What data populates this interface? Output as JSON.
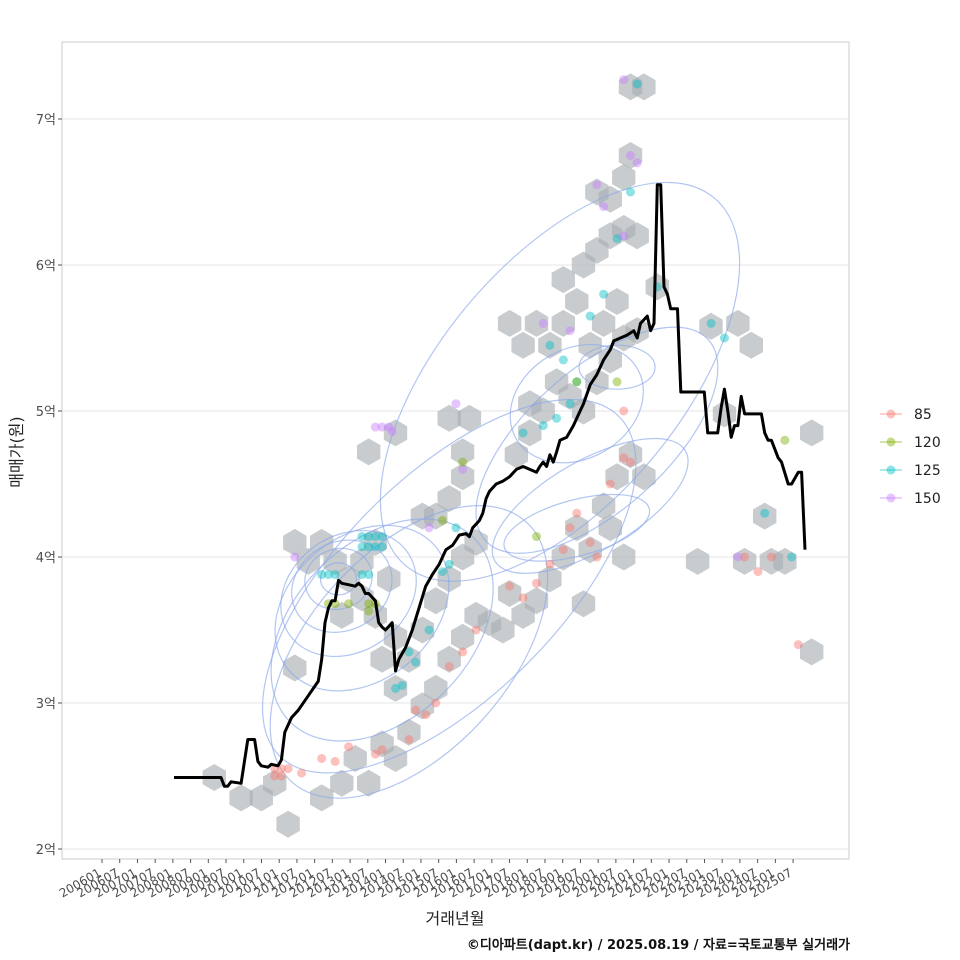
{
  "chart_data": {
    "type": "scatter",
    "xlabel": "거래년월",
    "ylabel": "매매가(원)",
    "ylim": [
      1.95,
      7.52
    ],
    "xlim_months": [
      0,
      246
    ],
    "y_ticks": [
      {
        "value": 2,
        "label": "2억"
      },
      {
        "value": 3,
        "label": "3억"
      },
      {
        "value": 4,
        "label": "4억"
      },
      {
        "value": 5,
        "label": "5억"
      },
      {
        "value": 6,
        "label": "6억"
      },
      {
        "value": 7,
        "label": "7억"
      }
    ],
    "x_ticks": [
      "200601",
      "200607",
      "200701",
      "200707",
      "200801",
      "200807",
      "200901",
      "200907",
      "201001",
      "201007",
      "201101",
      "201107",
      "201201",
      "201207",
      "201301",
      "201307",
      "201401",
      "201407",
      "201501",
      "201507",
      "201601",
      "201607",
      "201701",
      "201707",
      "201801",
      "201807",
      "201901",
      "201907",
      "202001",
      "202007",
      "202101",
      "202107",
      "202201",
      "202207",
      "202301",
      "202307",
      "202401",
      "202407",
      "202501",
      "202507"
    ],
    "legend_title": "",
    "legend": [
      {
        "label": "85",
        "color": "#F8766D"
      },
      {
        "label": "120",
        "color": "#7CAE00"
      },
      {
        "label": "125",
        "color": "#00BFC4"
      },
      {
        "label": "150",
        "color": "#C77CFF"
      }
    ],
    "median_line": [
      [
        0,
        2.49
      ],
      [
        6,
        2.49
      ],
      [
        8,
        2.49
      ],
      [
        10,
        2.49
      ],
      [
        14,
        2.49
      ],
      [
        15,
        2.43
      ],
      [
        16,
        2.43
      ],
      [
        17,
        2.46
      ],
      [
        20,
        2.45
      ],
      [
        22,
        2.75
      ],
      [
        24,
        2.75
      ],
      [
        25,
        2.6
      ],
      [
        26,
        2.57
      ],
      [
        28,
        2.56
      ],
      [
        29,
        2.58
      ],
      [
        31,
        2.57
      ],
      [
        32,
        2.61
      ],
      [
        33,
        2.8
      ],
      [
        35,
        2.9
      ],
      [
        37,
        2.95
      ],
      [
        40,
        3.05
      ],
      [
        43,
        3.15
      ],
      [
        44,
        3.3
      ],
      [
        45,
        3.55
      ],
      [
        46,
        3.65
      ],
      [
        47,
        3.7
      ],
      [
        48,
        3.7
      ],
      [
        49,
        3.84
      ],
      [
        50,
        3.82
      ],
      [
        52,
        3.81
      ],
      [
        54,
        3.8
      ],
      [
        55,
        3.82
      ],
      [
        56,
        3.8
      ],
      [
        57,
        3.75
      ],
      [
        58,
        3.75
      ],
      [
        60,
        3.7
      ],
      [
        61,
        3.55
      ],
      [
        62,
        3.52
      ],
      [
        63,
        3.5
      ],
      [
        65,
        3.55
      ],
      [
        66,
        3.22
      ],
      [
        67,
        3.3
      ],
      [
        69,
        3.38
      ],
      [
        71,
        3.5
      ],
      [
        73,
        3.65
      ],
      [
        75,
        3.8
      ],
      [
        77,
        3.88
      ],
      [
        79,
        3.95
      ],
      [
        81,
        4.05
      ],
      [
        83,
        4.08
      ],
      [
        85,
        4.15
      ],
      [
        87,
        4.16
      ],
      [
        88,
        4.14
      ],
      [
        89,
        4.2
      ],
      [
        91,
        4.25
      ],
      [
        92,
        4.3
      ],
      [
        93,
        4.4
      ],
      [
        94,
        4.45
      ],
      [
        96,
        4.5
      ],
      [
        98,
        4.52
      ],
      [
        100,
        4.55
      ],
      [
        102,
        4.6
      ],
      [
        104,
        4.62
      ],
      [
        106,
        4.6
      ],
      [
        108,
        4.58
      ],
      [
        109,
        4.62
      ],
      [
        110,
        4.65
      ],
      [
        111,
        4.62
      ],
      [
        112,
        4.7
      ],
      [
        113,
        4.65
      ],
      [
        114,
        4.72
      ],
      [
        115,
        4.8
      ],
      [
        117,
        4.82
      ],
      [
        119,
        4.9
      ],
      [
        121,
        5.0
      ],
      [
        122,
        5.05
      ],
      [
        124,
        5.18
      ],
      [
        126,
        5.25
      ],
      [
        128,
        5.35
      ],
      [
        130,
        5.42
      ],
      [
        131,
        5.48
      ],
      [
        133,
        5.5
      ],
      [
        135,
        5.52
      ],
      [
        137,
        5.55
      ],
      [
        138,
        5.5
      ],
      [
        139,
        5.6
      ],
      [
        141,
        5.65
      ],
      [
        142,
        5.55
      ],
      [
        143,
        5.6
      ],
      [
        144,
        6.55
      ],
      [
        145,
        6.55
      ],
      [
        146,
        5.85
      ],
      [
        147,
        5.8
      ],
      [
        148,
        5.7
      ],
      [
        150,
        5.7
      ],
      [
        151,
        5.13
      ],
      [
        153,
        5.13
      ],
      [
        155,
        5.13
      ],
      [
        157,
        5.13
      ],
      [
        158,
        5.13
      ],
      [
        159,
        4.85
      ],
      [
        161,
        4.85
      ],
      [
        162,
        4.85
      ],
      [
        163,
        5.02
      ],
      [
        164,
        5.15
      ],
      [
        165,
        5.0
      ],
      [
        166,
        4.82
      ],
      [
        167,
        4.9
      ],
      [
        168,
        4.9
      ],
      [
        169,
        5.1
      ],
      [
        170,
        4.98
      ],
      [
        172,
        4.98
      ],
      [
        174,
        4.98
      ],
      [
        175,
        4.98
      ],
      [
        176,
        4.85
      ],
      [
        177,
        4.8
      ],
      [
        178,
        4.8
      ],
      [
        180,
        4.68
      ],
      [
        181,
        4.65
      ],
      [
        183,
        4.5
      ],
      [
        184,
        4.5
      ],
      [
        186,
        4.58
      ],
      [
        187,
        4.58
      ],
      [
        188,
        4.05
      ]
    ],
    "points": [
      {
        "series": "150",
        "x": 60,
        "y": 4.89
      },
      {
        "series": "150",
        "x": 62,
        "y": 4.89
      },
      {
        "series": "150",
        "x": 64,
        "y": 4.89
      },
      {
        "series": "150",
        "x": 65,
        "y": 4.86
      },
      {
        "series": "125",
        "x": 44,
        "y": 3.88
      },
      {
        "series": "125",
        "x": 46,
        "y": 3.88
      },
      {
        "series": "125",
        "x": 48,
        "y": 3.88
      },
      {
        "series": "125",
        "x": 56,
        "y": 4.14
      },
      {
        "series": "125",
        "x": 58,
        "y": 4.14
      },
      {
        "series": "125",
        "x": 60,
        "y": 4.14
      },
      {
        "series": "125",
        "x": 62,
        "y": 4.14
      },
      {
        "series": "125",
        "x": 56,
        "y": 4.07
      },
      {
        "series": "125",
        "x": 58,
        "y": 4.07
      },
      {
        "series": "125",
        "x": 60,
        "y": 4.07
      },
      {
        "series": "125",
        "x": 62,
        "y": 4.07
      },
      {
        "series": "125",
        "x": 56,
        "y": 3.88
      },
      {
        "series": "125",
        "x": 58,
        "y": 3.88
      },
      {
        "series": "120",
        "x": 46,
        "y": 3.68
      },
      {
        "series": "120",
        "x": 48,
        "y": 3.68
      },
      {
        "series": "120",
        "x": 52,
        "y": 3.68
      },
      {
        "series": "120",
        "x": 58,
        "y": 3.68
      },
      {
        "series": "120",
        "x": 60,
        "y": 3.68
      },
      {
        "series": "120",
        "x": 58,
        "y": 3.63
      },
      {
        "series": "85",
        "x": 30,
        "y": 2.55
      },
      {
        "series": "85",
        "x": 32,
        "y": 2.55
      },
      {
        "series": "85",
        "x": 34,
        "y": 2.55
      },
      {
        "series": "85",
        "x": 30,
        "y": 2.5
      },
      {
        "series": "85",
        "x": 32,
        "y": 2.5
      },
      {
        "series": "85",
        "x": 38,
        "y": 2.52
      },
      {
        "series": "85",
        "x": 44,
        "y": 2.62
      },
      {
        "series": "85",
        "x": 48,
        "y": 2.6
      },
      {
        "series": "85",
        "x": 52,
        "y": 2.7
      },
      {
        "series": "85",
        "x": 60,
        "y": 2.65
      },
      {
        "series": "85",
        "x": 62,
        "y": 2.68
      },
      {
        "series": "85",
        "x": 70,
        "y": 2.75
      },
      {
        "series": "85",
        "x": 72,
        "y": 2.95
      },
      {
        "series": "85",
        "x": 75,
        "y": 2.92
      },
      {
        "series": "85",
        "x": 78,
        "y": 3.0
      },
      {
        "series": "85",
        "x": 82,
        "y": 3.25
      },
      {
        "series": "85",
        "x": 86,
        "y": 3.35
      },
      {
        "series": "85",
        "x": 90,
        "y": 3.5
      },
      {
        "series": "125",
        "x": 66,
        "y": 3.1
      },
      {
        "series": "125",
        "x": 68,
        "y": 3.12
      },
      {
        "series": "125",
        "x": 70,
        "y": 3.35
      },
      {
        "series": "125",
        "x": 72,
        "y": 3.28
      },
      {
        "series": "125",
        "x": 76,
        "y": 3.5
      },
      {
        "series": "125",
        "x": 80,
        "y": 3.9
      },
      {
        "series": "125",
        "x": 82,
        "y": 3.95
      },
      {
        "series": "125",
        "x": 84,
        "y": 4.2
      },
      {
        "series": "85",
        "x": 100,
        "y": 3.8
      },
      {
        "series": "85",
        "x": 104,
        "y": 3.72
      },
      {
        "series": "85",
        "x": 108,
        "y": 3.82
      },
      {
        "series": "85",
        "x": 112,
        "y": 3.95
      },
      {
        "series": "85",
        "x": 116,
        "y": 4.05
      },
      {
        "series": "85",
        "x": 118,
        "y": 4.2
      },
      {
        "series": "85",
        "x": 120,
        "y": 4.3
      },
      {
        "series": "85",
        "x": 124,
        "y": 4.1
      },
      {
        "series": "85",
        "x": 126,
        "y": 4.0
      },
      {
        "series": "85",
        "x": 130,
        "y": 4.5
      },
      {
        "series": "85",
        "x": 134,
        "y": 4.68
      },
      {
        "series": "85",
        "x": 136,
        "y": 4.65
      },
      {
        "series": "85",
        "x": 134,
        "y": 5.0
      },
      {
        "series": "125",
        "x": 104,
        "y": 4.85
      },
      {
        "series": "125",
        "x": 110,
        "y": 4.9
      },
      {
        "series": "125",
        "x": 114,
        "y": 4.95
      },
      {
        "series": "125",
        "x": 118,
        "y": 5.05
      },
      {
        "series": "125",
        "x": 120,
        "y": 5.2
      },
      {
        "series": "125",
        "x": 112,
        "y": 5.45
      },
      {
        "series": "125",
        "x": 116,
        "y": 5.35
      },
      {
        "series": "125",
        "x": 124,
        "y": 5.65
      },
      {
        "series": "125",
        "x": 128,
        "y": 5.8
      },
      {
        "series": "125",
        "x": 132,
        "y": 6.18
      },
      {
        "series": "125",
        "x": 136,
        "y": 6.5
      },
      {
        "series": "125",
        "x": 138,
        "y": 7.24
      },
      {
        "series": "125",
        "x": 144,
        "y": 5.85
      },
      {
        "series": "125",
        "x": 160,
        "y": 5.6
      },
      {
        "series": "125",
        "x": 164,
        "y": 5.5
      },
      {
        "series": "125",
        "x": 176,
        "y": 4.3
      },
      {
        "series": "150",
        "x": 110,
        "y": 5.6
      },
      {
        "series": "150",
        "x": 118,
        "y": 5.55
      },
      {
        "series": "150",
        "x": 126,
        "y": 6.55
      },
      {
        "series": "150",
        "x": 128,
        "y": 6.4
      },
      {
        "series": "150",
        "x": 134,
        "y": 6.2
      },
      {
        "series": "150",
        "x": 136,
        "y": 6.75
      },
      {
        "series": "150",
        "x": 138,
        "y": 6.7
      },
      {
        "series": "150",
        "x": 134,
        "y": 7.27
      },
      {
        "series": "150",
        "x": 86,
        "y": 4.6
      },
      {
        "series": "150",
        "x": 84,
        "y": 5.05
      },
      {
        "series": "150",
        "x": 76,
        "y": 4.2
      },
      {
        "series": "150",
        "x": 36,
        "y": 4.0
      },
      {
        "series": "120",
        "x": 80,
        "y": 4.25
      },
      {
        "series": "120",
        "x": 86,
        "y": 4.65
      },
      {
        "series": "120",
        "x": 108,
        "y": 4.14
      },
      {
        "series": "120",
        "x": 120,
        "y": 5.2
      },
      {
        "series": "120",
        "x": 132,
        "y": 5.2
      },
      {
        "series": "120",
        "x": 182,
        "y": 4.8
      },
      {
        "series": "85",
        "x": 170,
        "y": 4.0
      },
      {
        "series": "85",
        "x": 174,
        "y": 3.9
      },
      {
        "series": "85",
        "x": 178,
        "y": 4.0
      },
      {
        "series": "85",
        "x": 186,
        "y": 3.4
      },
      {
        "series": "150",
        "x": 168,
        "y": 4.0
      },
      {
        "series": "125",
        "x": 184,
        "y": 4.0
      }
    ],
    "hexbins": [
      [
        12,
        2.49
      ],
      [
        20,
        2.35
      ],
      [
        26,
        2.35
      ],
      [
        30,
        2.45
      ],
      [
        34,
        2.17
      ],
      [
        44,
        2.35
      ],
      [
        50,
        2.45
      ],
      [
        54,
        2.62
      ],
      [
        58,
        2.45
      ],
      [
        62,
        2.72
      ],
      [
        66,
        2.62
      ],
      [
        70,
        2.8
      ],
      [
        74,
        2.98
      ],
      [
        78,
        3.1
      ],
      [
        82,
        3.3
      ],
      [
        86,
        3.45
      ],
      [
        90,
        3.6
      ],
      [
        94,
        3.55
      ],
      [
        36,
        4.1
      ],
      [
        40,
        3.97
      ],
      [
        44,
        4.1
      ],
      [
        48,
        3.97
      ],
      [
        52,
        3.85
      ],
      [
        56,
        3.97
      ],
      [
        60,
        4.1
      ],
      [
        64,
        3.85
      ],
      [
        56,
        3.72
      ],
      [
        60,
        3.6
      ],
      [
        50,
        3.6
      ],
      [
        36,
        3.24
      ],
      [
        58,
        4.72
      ],
      [
        66,
        4.85
      ],
      [
        62,
        3.3
      ],
      [
        66,
        3.1
      ],
      [
        66,
        3.45
      ],
      [
        70,
        3.3
      ],
      [
        74,
        3.5
      ],
      [
        78,
        3.7
      ],
      [
        82,
        3.85
      ],
      [
        86,
        4.0
      ],
      [
        78,
        4.28
      ],
      [
        82,
        4.4
      ],
      [
        86,
        4.55
      ],
      [
        82,
        4.95
      ],
      [
        88,
        4.95
      ],
      [
        86,
        4.72
      ],
      [
        90,
        4.1
      ],
      [
        74,
        4.28
      ],
      [
        100,
        3.75
      ],
      [
        104,
        3.6
      ],
      [
        108,
        3.7
      ],
      [
        112,
        3.85
      ],
      [
        116,
        4.0
      ],
      [
        120,
        4.2
      ],
      [
        124,
        4.05
      ],
      [
        128,
        4.35
      ],
      [
        132,
        4.55
      ],
      [
        136,
        4.7
      ],
      [
        140,
        4.55
      ],
      [
        130,
        4.2
      ],
      [
        134,
        4.0
      ],
      [
        122,
        3.68
      ],
      [
        98,
        3.5
      ],
      [
        102,
        4.7
      ],
      [
        106,
        4.85
      ],
      [
        110,
        5.0
      ],
      [
        114,
        5.2
      ],
      [
        118,
        5.1
      ],
      [
        122,
        5.0
      ],
      [
        126,
        5.2
      ],
      [
        130,
        5.35
      ],
      [
        134,
        5.5
      ],
      [
        138,
        5.55
      ],
      [
        106,
        5.05
      ],
      [
        100,
        5.6
      ],
      [
        104,
        5.45
      ],
      [
        108,
        5.6
      ],
      [
        112,
        5.45
      ],
      [
        116,
        5.6
      ],
      [
        120,
        5.75
      ],
      [
        124,
        5.45
      ],
      [
        128,
        5.6
      ],
      [
        132,
        5.75
      ],
      [
        116,
        5.9
      ],
      [
        122,
        6.0
      ],
      [
        126,
        6.1
      ],
      [
        130,
        6.2
      ],
      [
        134,
        6.25
      ],
      [
        138,
        6.2
      ],
      [
        126,
        6.5
      ],
      [
        130,
        6.45
      ],
      [
        134,
        6.6
      ],
      [
        136,
        6.75
      ],
      [
        136,
        7.22
      ],
      [
        140,
        7.22
      ],
      [
        144,
        5.85
      ],
      [
        160,
        5.58
      ],
      [
        168,
        5.6
      ],
      [
        172,
        5.45
      ],
      [
        176,
        4.28
      ],
      [
        164,
        4.98
      ],
      [
        156,
        3.97
      ],
      [
        170,
        3.97
      ],
      [
        178,
        3.97
      ],
      [
        182,
        3.97
      ],
      [
        190,
        4.85
      ],
      [
        190,
        3.35
      ]
    ]
  },
  "caption": "©디아파트(dapt.kr) / 2025.08.19 / 자료=국토교통부 실거래가"
}
